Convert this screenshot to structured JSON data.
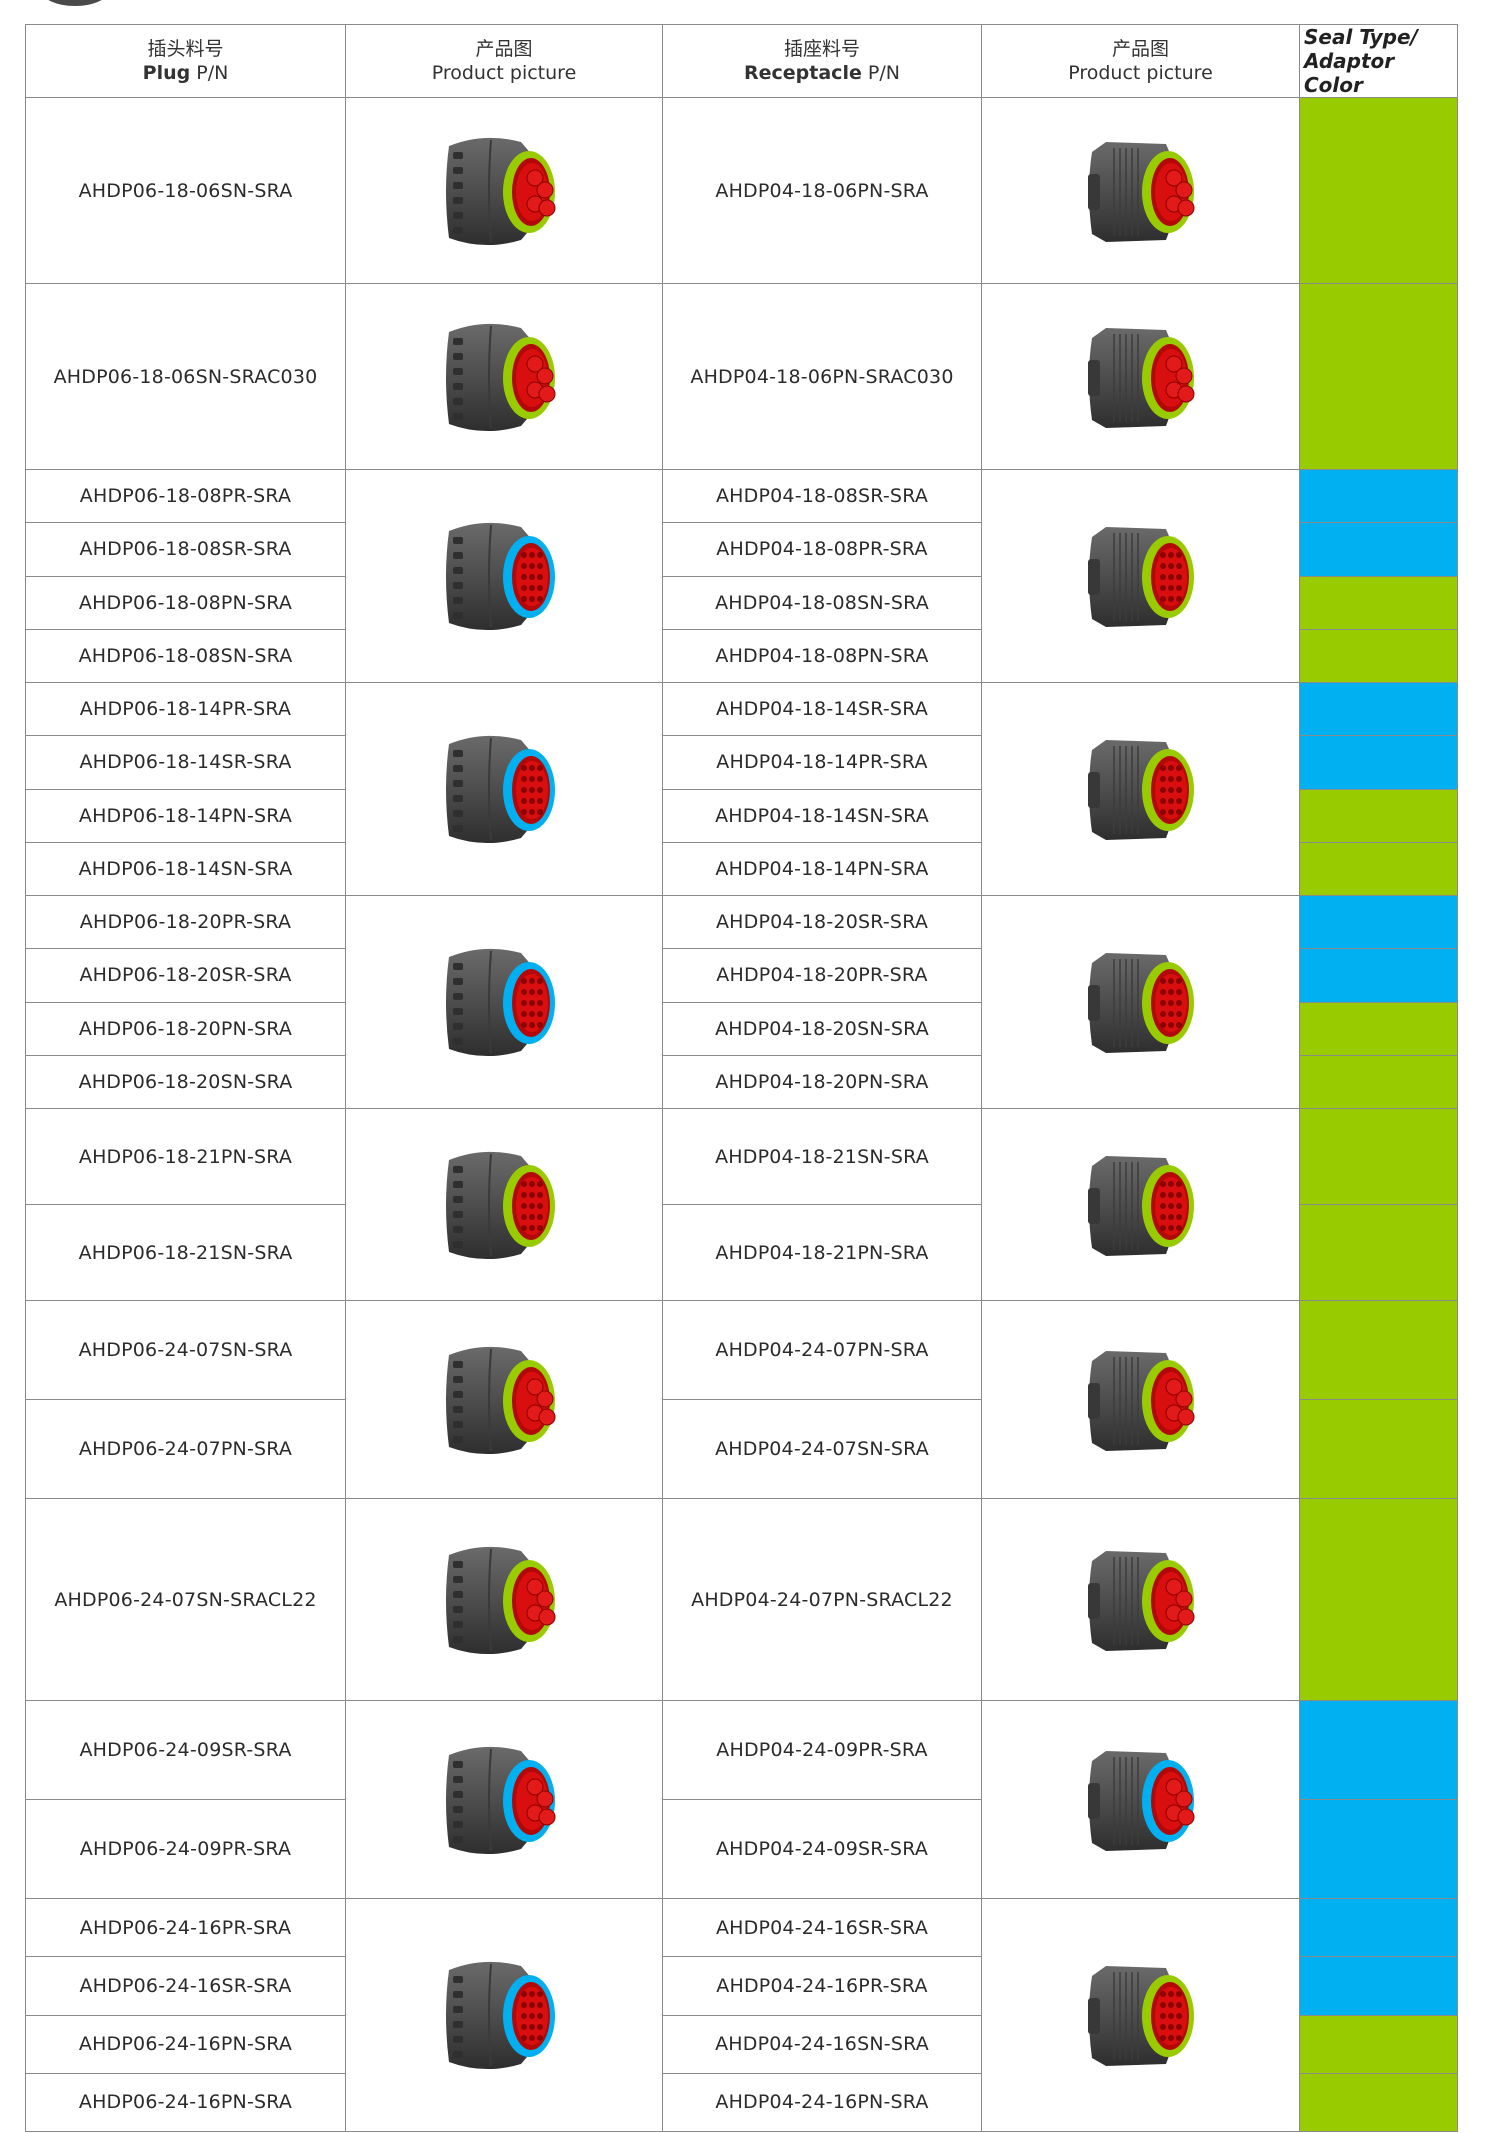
{
  "header": {
    "plug_cn": "插头料号",
    "plug_en_bold": "Plug",
    "plug_en_rest": "P/N",
    "pic1_cn": "产品图",
    "pic1_en": "Product picture",
    "rec_cn": "插座料号",
    "rec_en_bold": "Receptacle",
    "rec_en_rest": "P/N",
    "pic2_cn": "产品图",
    "pic2_en": "Product picture",
    "seal_line1": "Seal Type/",
    "seal_line2": "Adaptor Color"
  },
  "colors": {
    "green": "#99cc00",
    "blue": "#00b0f0",
    "connector_body": "#4d4d4d",
    "contacts_red": "#d90f0f"
  },
  "groups": [
    {
      "rows": [
        {
          "plug": "AHDP06-18-06SN-SRA",
          "rec": "AHDP04-18-06PN-SRA",
          "seal": "green"
        }
      ],
      "plug_picture": {
        "icon": "plug-connector-icon",
        "seal_ring": "green",
        "contacts": "large-pins"
      },
      "rec_picture": {
        "icon": "receptacle-connector-icon",
        "seal_ring": "green",
        "contacts": "large-pins"
      }
    },
    {
      "rows": [
        {
          "plug": "AHDP06-18-06SN-SRAC030",
          "rec": "AHDP04-18-06PN-SRAC030",
          "seal": "green"
        }
      ],
      "plug_picture": {
        "icon": "plug-connector-icon",
        "seal_ring": "green",
        "contacts": "large-pins"
      },
      "rec_picture": {
        "icon": "receptacle-connector-icon",
        "seal_ring": "green",
        "contacts": "large-pins"
      }
    },
    {
      "rows": [
        {
          "plug": "AHDP06-18-08PR-SRA",
          "rec": "AHDP04-18-08SR-SRA",
          "seal": "blue"
        },
        {
          "plug": "AHDP06-18-08SR-SRA",
          "rec": "AHDP04-18-08PR-SRA",
          "seal": "blue"
        },
        {
          "plug": "AHDP06-18-08PN-SRA",
          "rec": "AHDP04-18-08SN-SRA",
          "seal": "green"
        },
        {
          "plug": "AHDP06-18-08SN-SRA",
          "rec": "AHDP04-18-08PN-SRA",
          "seal": "green"
        }
      ],
      "plug_picture": {
        "icon": "plug-connector-icon",
        "seal_ring": "blue",
        "contacts": "small-pins"
      },
      "rec_picture": {
        "icon": "receptacle-connector-icon",
        "seal_ring": "green",
        "contacts": "small-pins"
      }
    },
    {
      "rows": [
        {
          "plug": "AHDP06-18-14PR-SRA",
          "rec": "AHDP04-18-14SR-SRA",
          "seal": "blue"
        },
        {
          "plug": "AHDP06-18-14SR-SRA",
          "rec": "AHDP04-18-14PR-SRA",
          "seal": "blue"
        },
        {
          "plug": "AHDP06-18-14PN-SRA",
          "rec": "AHDP04-18-14SN-SRA",
          "seal": "green"
        },
        {
          "plug": "AHDP06-18-14SN-SRA",
          "rec": "AHDP04-18-14PN-SRA",
          "seal": "green"
        }
      ],
      "plug_picture": {
        "icon": "plug-connector-icon",
        "seal_ring": "blue",
        "contacts": "small-pins"
      },
      "rec_picture": {
        "icon": "receptacle-connector-icon",
        "seal_ring": "green",
        "contacts": "small-pins"
      }
    },
    {
      "rows": [
        {
          "plug": "AHDP06-18-20PR-SRA",
          "rec": "AHDP04-18-20SR-SRA",
          "seal": "blue"
        },
        {
          "plug": "AHDP06-18-20SR-SRA",
          "rec": "AHDP04-18-20PR-SRA",
          "seal": "blue"
        },
        {
          "plug": "AHDP06-18-20PN-SRA",
          "rec": "AHDP04-18-20SN-SRA",
          "seal": "green"
        },
        {
          "plug": "AHDP06-18-20SN-SRA",
          "rec": "AHDP04-18-20PN-SRA",
          "seal": "green"
        }
      ],
      "plug_picture": {
        "icon": "plug-connector-icon",
        "seal_ring": "blue",
        "contacts": "small-pins"
      },
      "rec_picture": {
        "icon": "receptacle-connector-icon",
        "seal_ring": "green",
        "contacts": "small-pins"
      }
    },
    {
      "rows": [
        {
          "plug": "AHDP06-18-21PN-SRA",
          "rec": "AHDP04-18-21SN-SRA",
          "seal": "green"
        },
        {
          "plug": "AHDP06-18-21SN-SRA",
          "rec": "AHDP04-18-21PN-SRA",
          "seal": "green"
        }
      ],
      "plug_picture": {
        "icon": "plug-connector-icon",
        "seal_ring": "green",
        "contacts": "small-pins"
      },
      "rec_picture": {
        "icon": "receptacle-connector-icon",
        "seal_ring": "green",
        "contacts": "small-pins"
      }
    },
    {
      "rows": [
        {
          "plug": "AHDP06-24-07SN-SRA",
          "rec": "AHDP04-24-07PN-SRA",
          "seal": "green"
        },
        {
          "plug": "AHDP06-24-07PN-SRA",
          "rec": "AHDP04-24-07SN-SRA",
          "seal": "green"
        }
      ],
      "plug_picture": {
        "icon": "plug-connector-icon",
        "seal_ring": "green",
        "contacts": "large-pins"
      },
      "rec_picture": {
        "icon": "receptacle-connector-icon",
        "seal_ring": "green",
        "contacts": "large-pins"
      }
    },
    {
      "rows": [
        {
          "plug": "AHDP06-24-07SN-SRACL22",
          "rec": "AHDP04-24-07PN-SRACL22",
          "seal": "green"
        }
      ],
      "plug_picture": {
        "icon": "plug-connector-icon",
        "seal_ring": "green",
        "contacts": "large-pins"
      },
      "rec_picture": {
        "icon": "receptacle-connector-icon",
        "seal_ring": "green",
        "contacts": "large-pins"
      }
    },
    {
      "rows": [
        {
          "plug": "AHDP06-24-09SR-SRA",
          "rec": "AHDP04-24-09PR-SRA",
          "seal": "blue"
        },
        {
          "plug": "AHDP06-24-09PR-SRA",
          "rec": "AHDP04-24-09SR-SRA",
          "seal": "blue"
        }
      ],
      "plug_picture": {
        "icon": "plug-connector-icon",
        "seal_ring": "blue",
        "contacts": "large-pins"
      },
      "rec_picture": {
        "icon": "receptacle-connector-icon",
        "seal_ring": "blue",
        "contacts": "large-pins"
      }
    },
    {
      "rows": [
        {
          "plug": "AHDP06-24-16PR-SRA",
          "rec": "AHDP04-24-16SR-SRA",
          "seal": "blue"
        },
        {
          "plug": "AHDP06-24-16SR-SRA",
          "rec": "AHDP04-24-16PR-SRA",
          "seal": "blue"
        },
        {
          "plug": "AHDP06-24-16PN-SRA",
          "rec": "AHDP04-24-16SN-SRA",
          "seal": "green"
        },
        {
          "plug": "AHDP06-24-16PN-SRA",
          "rec": "AHDP04-24-16PN-SRA",
          "seal": "green"
        }
      ],
      "plug_picture": {
        "icon": "plug-connector-icon",
        "seal_ring": "blue",
        "contacts": "small-pins"
      },
      "rec_picture": {
        "icon": "receptacle-connector-icon",
        "seal_ring": "green",
        "contacts": "small-pins"
      }
    }
  ]
}
